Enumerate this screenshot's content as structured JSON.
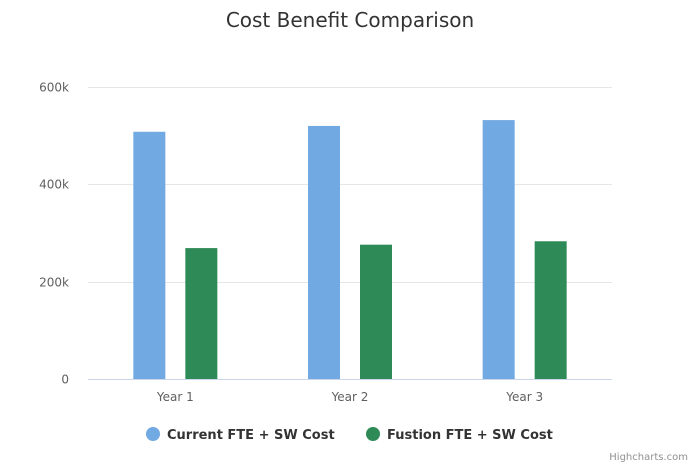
{
  "chart_data": {
    "type": "bar",
    "title": "Cost Benefit Comparison",
    "categories": [
      "Year 1",
      "Year 2",
      "Year 3"
    ],
    "series": [
      {
        "name": "Current FTE + SW Cost",
        "color": "#71a9e2",
        "values": [
          508000,
          520000,
          532000
        ]
      },
      {
        "name": "Fustion FTE + SW Cost",
        "color": "#2e8b57",
        "values": [
          269000,
          276000,
          283000
        ]
      }
    ],
    "ylim": [
      0,
      600000
    ],
    "yticks": [
      {
        "value": 0,
        "label": "0"
      },
      {
        "value": 200000,
        "label": "200k"
      },
      {
        "value": 400000,
        "label": "400k"
      },
      {
        "value": 600000,
        "label": "600k"
      }
    ],
    "xlabel": "",
    "ylabel": "",
    "grid": true,
    "legend_position": "bottom-center"
  },
  "credits": "Highcharts.com"
}
